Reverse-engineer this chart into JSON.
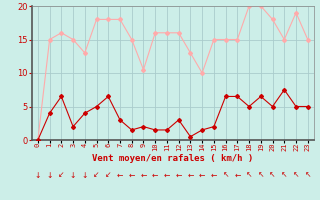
{
  "x": [
    0,
    1,
    2,
    3,
    4,
    5,
    6,
    7,
    8,
    9,
    10,
    11,
    12,
    13,
    14,
    15,
    16,
    17,
    18,
    19,
    20,
    21,
    22,
    23
  ],
  "rafales": [
    0,
    15,
    16,
    15,
    13,
    18,
    18,
    18,
    15,
    10.5,
    16,
    16,
    16,
    13,
    10,
    15,
    15,
    15,
    20,
    20,
    18,
    15,
    19,
    15
  ],
  "moyen": [
    0,
    4,
    6.5,
    2,
    4,
    5,
    6.5,
    3,
    1.5,
    2,
    1.5,
    1.5,
    3,
    0.5,
    1.5,
    2,
    6.5,
    6.5,
    5,
    6.5,
    5,
    7.5,
    5,
    5
  ],
  "rafales_color": "#ffaaaa",
  "moyen_color": "#cc0000",
  "bg_color": "#cceee8",
  "grid_color": "#aacccc",
  "xlabel": "Vent moyen/en rafales ( km/h )",
  "xlabel_color": "#cc0000",
  "tick_color": "#cc0000",
  "ylim": [
    0,
    20
  ],
  "yticks": [
    0,
    5,
    10,
    15,
    20
  ],
  "arrow_chars": [
    "↓",
    "↓",
    "↙",
    "↓",
    "↓",
    "↙",
    "↙",
    "←",
    "←",
    "←",
    "←",
    "←",
    "←",
    "←",
    "←",
    "←",
    "↖",
    "←",
    "↖",
    "↖",
    "↖",
    "↖",
    "↖",
    "↖"
  ]
}
